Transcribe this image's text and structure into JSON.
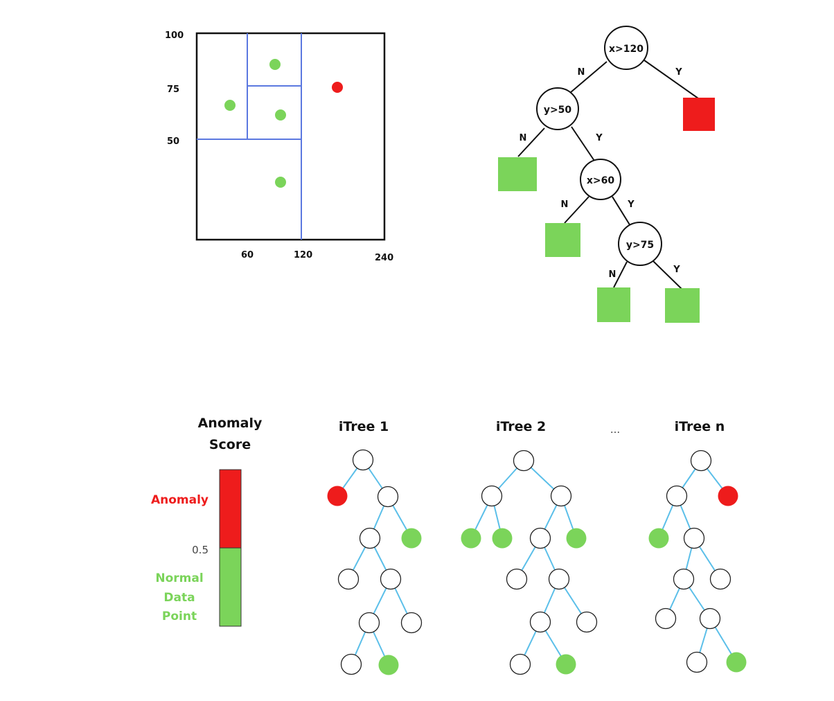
{
  "colors": {
    "normal": "#7bd45a",
    "anomaly": "#ee1c1c",
    "partition": "#5b78e0",
    "itree_edge": "#5bbfe9",
    "frame": "#111111"
  },
  "partition_plot": {
    "y_ticks": [
      "100",
      "75",
      "50"
    ],
    "x_ticks": [
      "60",
      "120",
      "240"
    ],
    "x_splits": [
      60,
      120
    ],
    "y_split": 50,
    "sub_split": {
      "y": 75
    },
    "points": [
      {
        "x": 90,
        "y": 85,
        "status": "normal"
      },
      {
        "x": 40,
        "y": 65,
        "status": "normal"
      },
      {
        "x": 96,
        "y": 61,
        "status": "normal"
      },
      {
        "x": 96,
        "y": 28,
        "status": "normal"
      },
      {
        "x": 160,
        "y": 74,
        "status": "anomaly"
      }
    ]
  },
  "decision_tree": {
    "nodes": [
      {
        "id": "n1",
        "label": "x>120"
      },
      {
        "id": "n2",
        "label": "y>50"
      },
      {
        "id": "n3",
        "label": "x>60"
      },
      {
        "id": "n4",
        "label": "y>75"
      }
    ],
    "branch_labels": {
      "no": "N",
      "yes": "Y"
    },
    "leaves": [
      "normal",
      "anomaly",
      "normal",
      "normal",
      "normal",
      "normal"
    ]
  },
  "score_legend": {
    "title_line1": "Anomaly",
    "title_line2": "Score",
    "anomaly_label": "Anomaly",
    "threshold": "0.5",
    "normal_line1": "Normal",
    "normal_line2": "Data",
    "normal_line3": "Point"
  },
  "forest": {
    "ellipsis": "...",
    "trees": [
      {
        "name": "iTree 1"
      },
      {
        "name": "iTree 2"
      },
      {
        "name": "iTree n"
      }
    ]
  }
}
